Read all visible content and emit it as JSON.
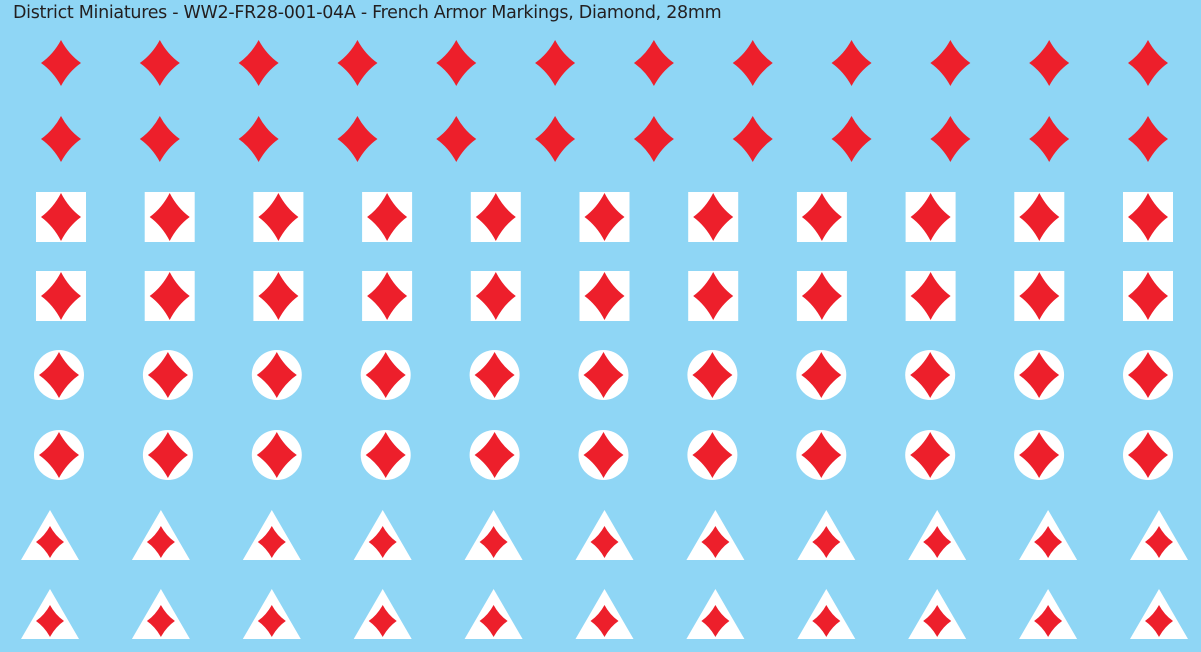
{
  "title": "District Miniatures - WW2-FR28-001-04A - French Armor Markings, Diamond, 28mm",
  "colors": {
    "background": "#8fd6f5",
    "marking": "#ed1f2b",
    "backing": "#ffffff",
    "text": "#231f20"
  },
  "rows": [
    {
      "style": "plain-diamond",
      "count": 12
    },
    {
      "style": "plain-diamond",
      "count": 12
    },
    {
      "style": "diamond-on-square",
      "count": 11
    },
    {
      "style": "diamond-on-square",
      "count": 11
    },
    {
      "style": "diamond-on-circle",
      "count": 11
    },
    {
      "style": "diamond-on-circle",
      "count": 11
    },
    {
      "style": "diamond-on-triangle",
      "count": 11
    },
    {
      "style": "diamond-on-triangle",
      "count": 11
    }
  ]
}
